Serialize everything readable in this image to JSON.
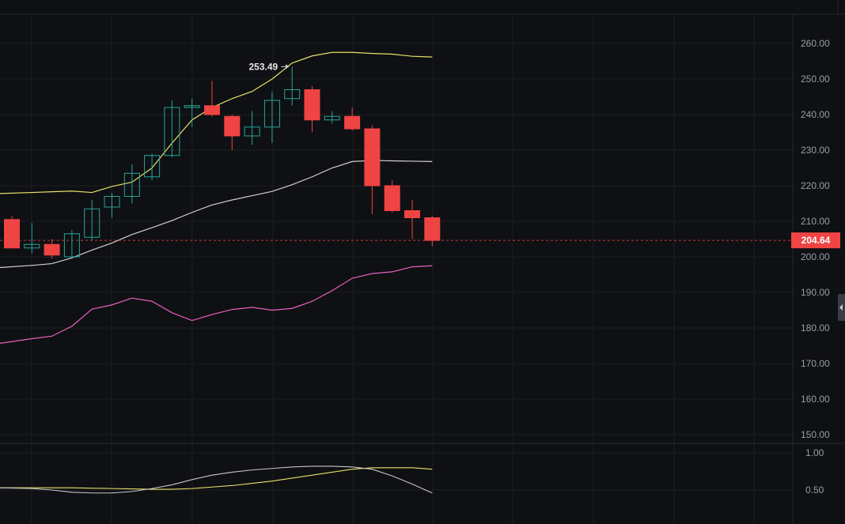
{
  "chart_data": {
    "type": "candlestick",
    "price_axis": {
      "range": [
        147,
        263
      ],
      "ticks": [
        260,
        250,
        240,
        230,
        220,
        210,
        200,
        190,
        180,
        170,
        160,
        150
      ],
      "tick_labels": [
        "260.00",
        "250.00",
        "240.00",
        "230.00",
        "220.00",
        "210.00",
        "200.00",
        "190.00",
        "180.00",
        "170.00",
        "160.00",
        "150.00"
      ]
    },
    "candles": [
      {
        "open": 210.5,
        "high": 211.5,
        "low": 202.5,
        "close": 202.5
      },
      {
        "open": 202.5,
        "high": 209.5,
        "low": 201.0,
        "close": 203.5
      },
      {
        "open": 203.5,
        "high": 205.0,
        "low": 199.5,
        "close": 200.5
      },
      {
        "open": 200.0,
        "high": 207.5,
        "low": 199.5,
        "close": 206.5
      },
      {
        "open": 205.5,
        "high": 216.0,
        "low": 204.5,
        "close": 213.5
      },
      {
        "open": 214.0,
        "high": 218.0,
        "low": 211.0,
        "close": 217.0
      },
      {
        "open": 217.0,
        "high": 226.0,
        "low": 215.0,
        "close": 223.5
      },
      {
        "open": 222.5,
        "high": 229.0,
        "low": 221.5,
        "close": 228.5
      },
      {
        "open": 228.5,
        "high": 244.0,
        "low": 228.0,
        "close": 242.0
      },
      {
        "open": 242.0,
        "high": 244.5,
        "low": 236.5,
        "close": 242.5
      },
      {
        "open": 242.5,
        "high": 249.5,
        "low": 239.5,
        "close": 240.0
      },
      {
        "open": 239.5,
        "high": 240.0,
        "low": 230.0,
        "close": 234.0
      },
      {
        "open": 234.0,
        "high": 241.0,
        "low": 231.5,
        "close": 236.5
      },
      {
        "open": 236.5,
        "high": 246.5,
        "low": 232.0,
        "close": 244.0
      },
      {
        "open": 244.5,
        "high": 253.49,
        "low": 242.5,
        "close": 247.0
      },
      {
        "open": 247.0,
        "high": 248.0,
        "low": 235.0,
        "close": 238.5
      },
      {
        "open": 238.5,
        "high": 241.0,
        "low": 237.5,
        "close": 239.5
      },
      {
        "open": 239.5,
        "high": 242.0,
        "low": 235.5,
        "close": 236.0
      },
      {
        "open": 236.0,
        "high": 237.0,
        "low": 212.0,
        "close": 220.0
      },
      {
        "open": 220.0,
        "high": 221.5,
        "low": 212.5,
        "close": 213.0
      },
      {
        "open": 213.0,
        "high": 216.0,
        "low": 205.0,
        "close": 211.0
      },
      {
        "open": 211.0,
        "high": 211.5,
        "low": 203.0,
        "close": 204.64
      }
    ],
    "overlays": [
      {
        "color": "#e8e06a",
        "values": [
          217.8,
          218.1,
          218.3,
          218.5,
          218.1,
          219.8,
          221.0,
          225.0,
          232.0,
          238.5,
          242.0,
          244.5,
          246.5,
          250.0,
          254.5,
          256.5,
          257.5,
          257.5,
          257.2,
          257.0,
          256.4,
          256.2
        ]
      },
      {
        "color": "#d0d0d0",
        "values": [
          197.0,
          197.6,
          198.1,
          199.7,
          201.9,
          203.9,
          206.3,
          208.2,
          210.2,
          212.5,
          214.6,
          216.0,
          217.2,
          218.4,
          220.3,
          222.5,
          225.0,
          226.8,
          227.1,
          227.0,
          226.9,
          226.8
        ]
      },
      {
        "color": "#e95fc0",
        "values": [
          175.7,
          177.0,
          177.7,
          180.5,
          185.3,
          186.5,
          188.4,
          187.5,
          184.3,
          182.1,
          183.8,
          185.2,
          185.8,
          185.0,
          185.5,
          187.5,
          190.5,
          194.0,
          195.3,
          195.8,
          197.2,
          197.5
        ]
      }
    ],
    "current_price": {
      "value": 204.64,
      "label": "204.64"
    },
    "max_marker": {
      "candle_index": 14,
      "value": 253.49,
      "label": "253.49"
    },
    "oscillator": {
      "range": [
        0.4,
        1.05
      ],
      "ticks": [
        1.0,
        0.5
      ],
      "tick_labels": [
        "1.00",
        "0.50"
      ],
      "lines": [
        {
          "color": "#e8e06a",
          "values": [
            0.53,
            0.53,
            0.53,
            0.53,
            0.525,
            0.52,
            0.515,
            0.51,
            0.51,
            0.52,
            0.54,
            0.56,
            0.59,
            0.62,
            0.66,
            0.7,
            0.74,
            0.78,
            0.8,
            0.8,
            0.8,
            0.78
          ]
        },
        {
          "color": "#c8c8c8",
          "values": [
            0.53,
            0.52,
            0.5,
            0.47,
            0.46,
            0.46,
            0.48,
            0.52,
            0.57,
            0.64,
            0.7,
            0.74,
            0.77,
            0.79,
            0.81,
            0.82,
            0.82,
            0.81,
            0.78,
            0.69,
            0.58,
            0.46
          ]
        }
      ]
    },
    "grid": true,
    "colors": {
      "up": "#26a69a",
      "down": "#ef4444",
      "background": "#0f1013",
      "grid": "#1e2024",
      "axis_text": "#9a9ea8"
    }
  }
}
